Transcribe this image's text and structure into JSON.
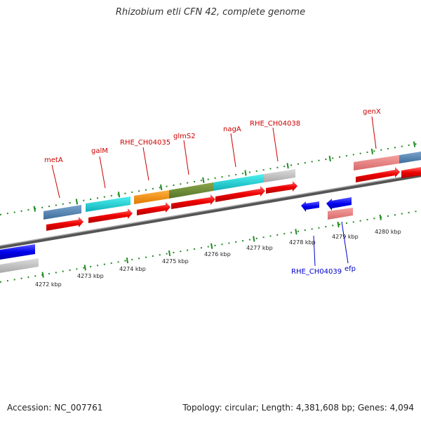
{
  "title": "Rhizobium etli CFN 42, complete genome",
  "accession_label": "Accession: NC_007761",
  "summary_label": "Topology: circular; Length: 4,381,608 bp; Genes: 4,094",
  "kbp_labels": [
    "4272 kbp",
    "4273 kbp",
    "4274 kbp",
    "4275 kbp",
    "4276 kbp",
    "4277 kbp",
    "4278 kbp",
    "4279 kbp",
    "4280 kbp"
  ],
  "genes_forward": [
    {
      "name": "metA"
    },
    {
      "name": "galM"
    },
    {
      "name": "RHE_CH04035"
    },
    {
      "name": "glmS2"
    },
    {
      "name": "nagA"
    },
    {
      "name": "RHE_CH04038"
    },
    {
      "name": "genX"
    }
  ],
  "genes_reverse": [
    {
      "name": "RHE_CH04039"
    },
    {
      "name": "efp"
    }
  ],
  "colors": {
    "forward_label": "#cc0000",
    "reverse_label": "#0000cc",
    "forward_cds": "#ee0000",
    "reverse_cds": "#0000ee",
    "tick": "#228b22",
    "backbone": "#777777"
  }
}
